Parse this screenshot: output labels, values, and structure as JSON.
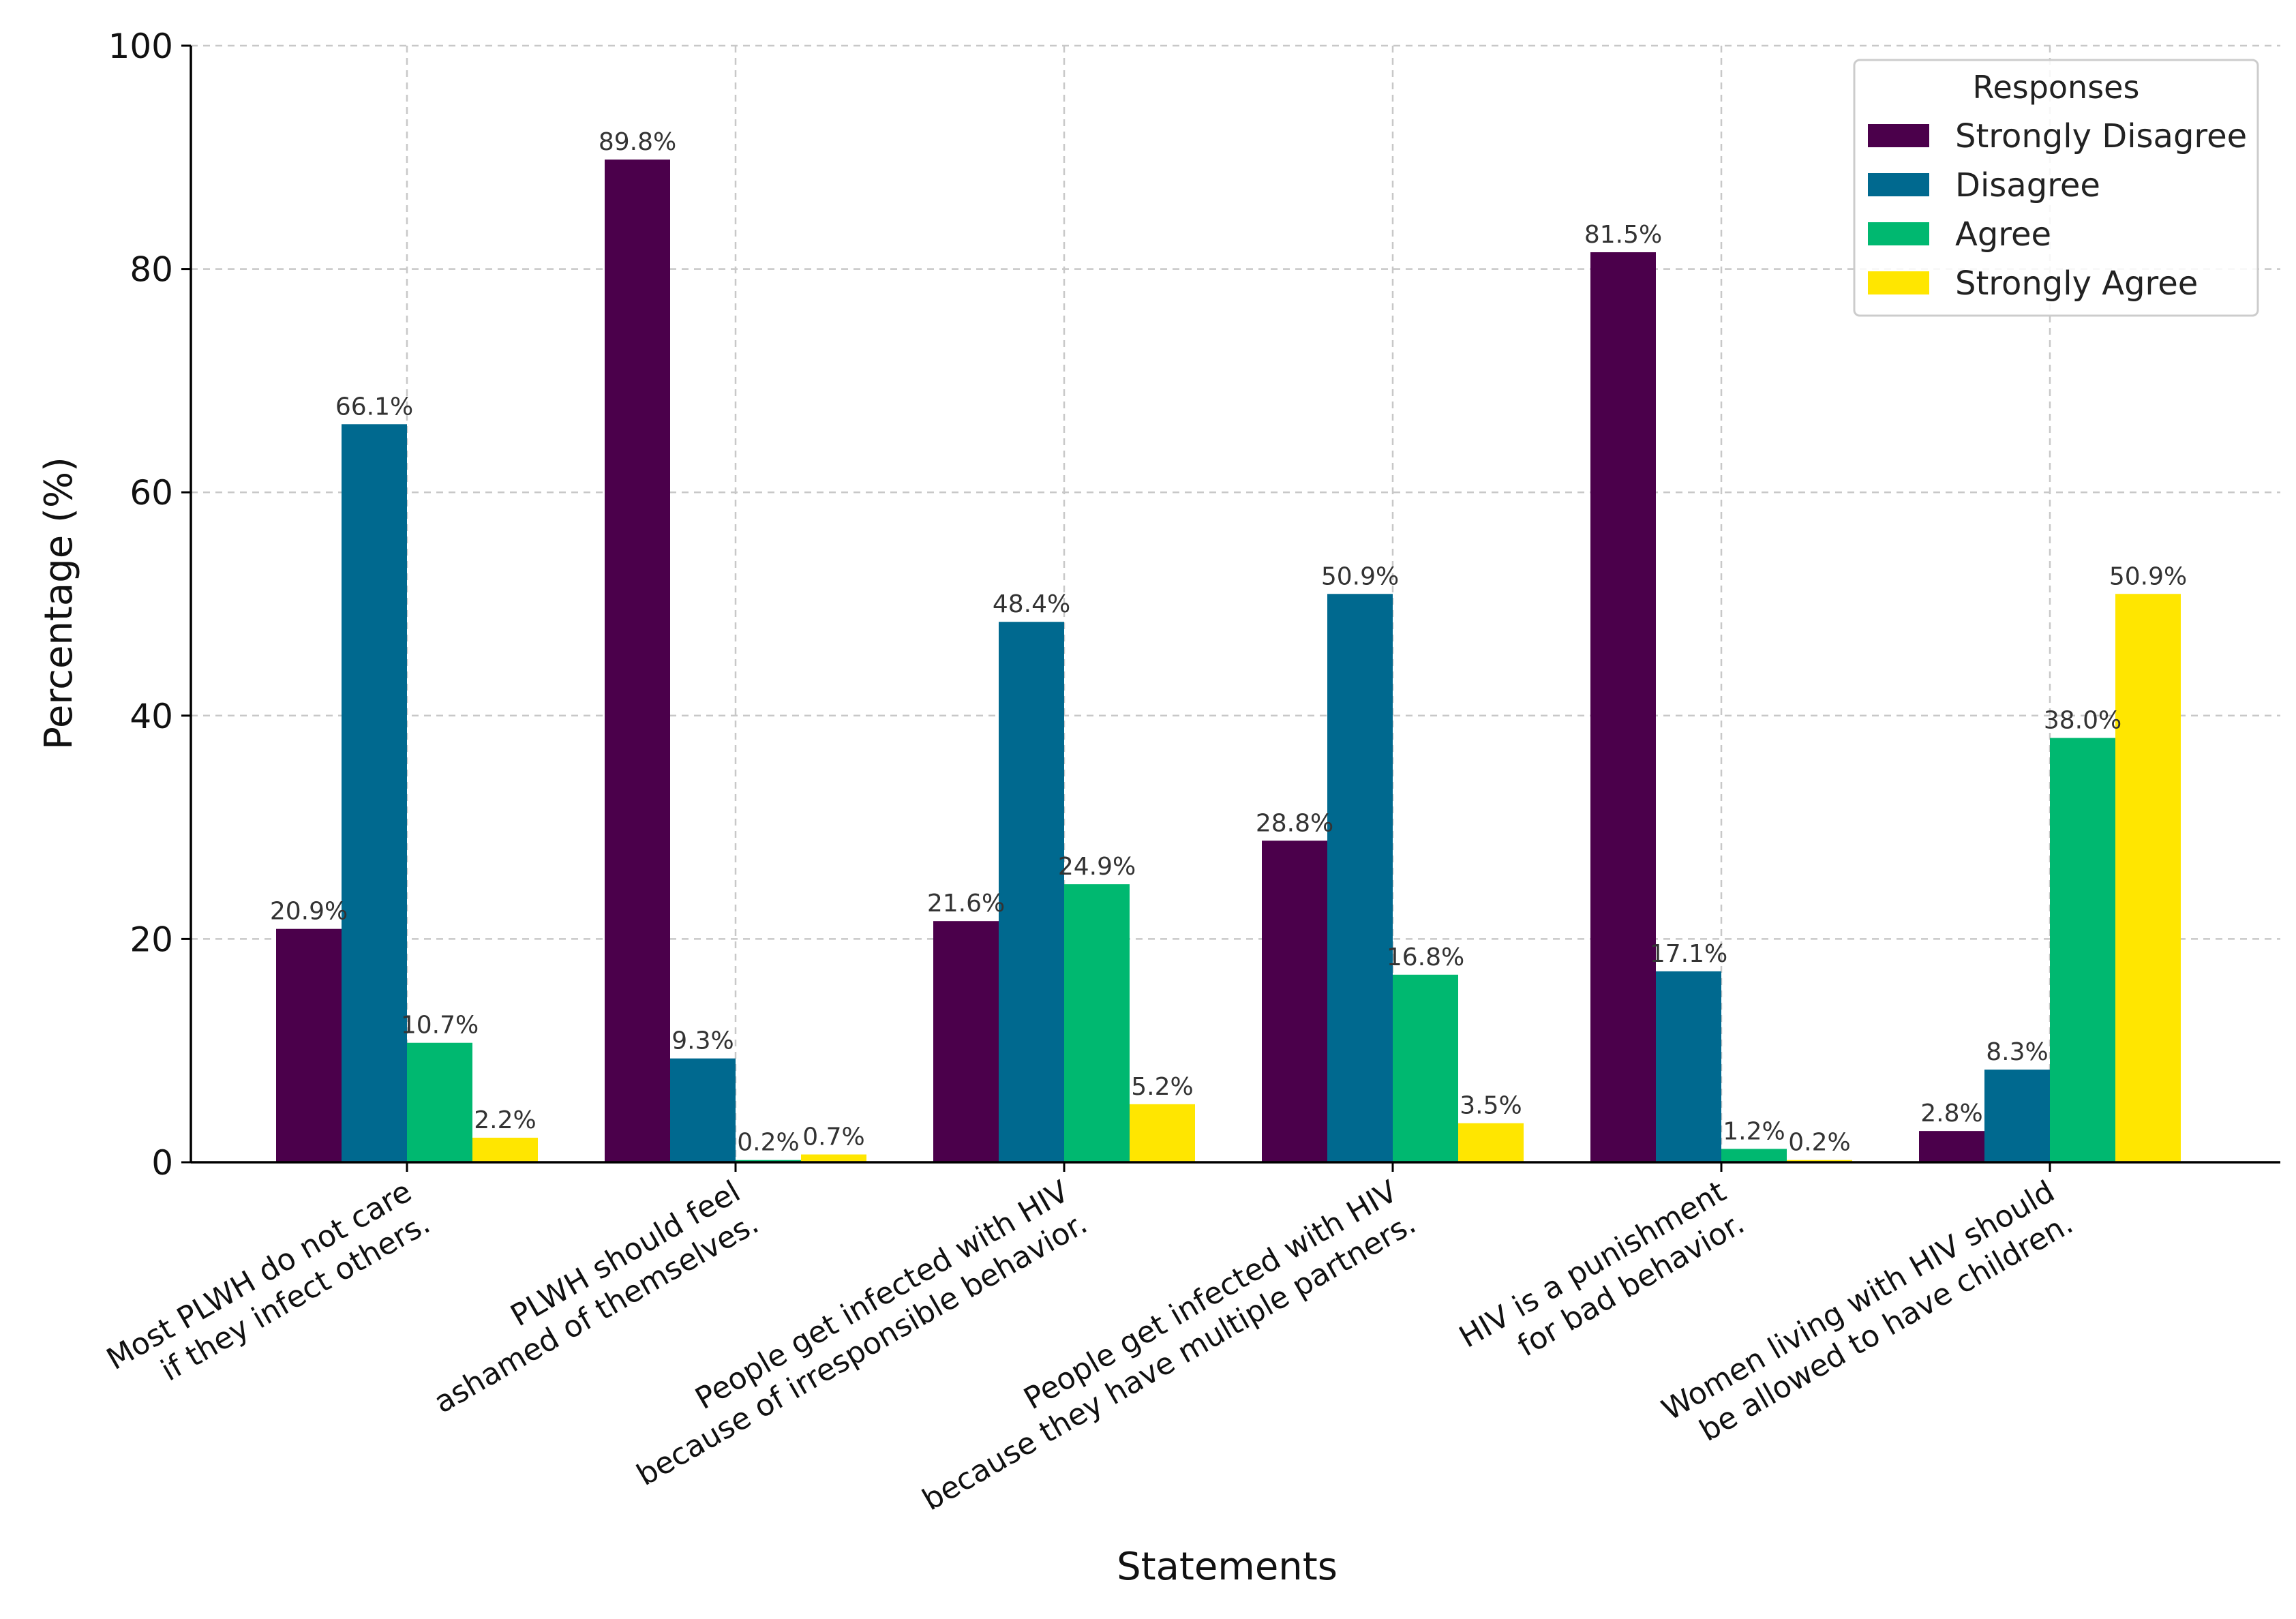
{
  "chart_data": {
    "type": "bar",
    "title": "",
    "xlabel": "Statements",
    "ylabel": "Percentage (%)",
    "ylim": [
      0,
      100
    ],
    "yticks": [
      0,
      20,
      40,
      60,
      80,
      100
    ],
    "grid": true,
    "legend": {
      "title": "Responses",
      "position": "top-right"
    },
    "categories": [
      [
        "Most PLWH do not care",
        "if they infect others."
      ],
      [
        "PLWH should feel",
        "ashamed of themselves."
      ],
      [
        "People get infected with HIV",
        "because of irresponsible behavior."
      ],
      [
        "People get infected with HIV",
        "because they have multiple partners."
      ],
      [
        "HIV is a punishment",
        "for bad behavior."
      ],
      [
        "Women living with HIV should",
        "be allowed to have children."
      ]
    ],
    "series": [
      {
        "name": "Strongly Disagree",
        "color": "#4b004b",
        "values": [
          20.9,
          89.8,
          21.6,
          28.8,
          81.5,
          2.8
        ],
        "labels": [
          "20.9%",
          "89.8%",
          "21.6%",
          "28.8%",
          "81.5%",
          "2.8%"
        ]
      },
      {
        "name": "Disagree",
        "color": "#00698f",
        "values": [
          66.1,
          9.3,
          48.4,
          50.9,
          17.1,
          8.3
        ],
        "labels": [
          "66.1%",
          "9.3%",
          "48.4%",
          "50.9%",
          "17.1%",
          "8.3%"
        ]
      },
      {
        "name": "Agree",
        "color": "#00b870",
        "values": [
          10.7,
          0.2,
          24.9,
          16.8,
          1.2,
          38.0
        ],
        "labels": [
          "10.7%",
          "0.2%",
          "24.9%",
          "16.8%",
          "1.2%",
          "38.0%"
        ]
      },
      {
        "name": "Strongly Agree",
        "color": "#ffe600",
        "values": [
          2.2,
          0.7,
          5.2,
          3.5,
          0.2,
          50.9
        ],
        "labels": [
          "2.2%",
          "0.7%",
          "5.2%",
          "3.5%",
          "0.2%",
          "50.9%"
        ]
      }
    ]
  }
}
